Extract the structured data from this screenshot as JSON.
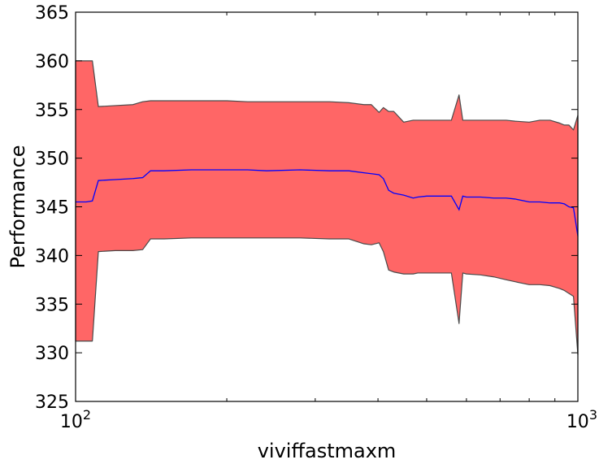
{
  "chart_data": {
    "type": "area",
    "title": "",
    "xlabel": "viviffastmaxm",
    "ylabel": "Performance",
    "x_scale": "log",
    "xlim": [
      100,
      1000
    ],
    "ylim": [
      325,
      365
    ],
    "grid": false,
    "legend": "none",
    "x_ticks": [
      {
        "value": 100,
        "base": "10",
        "exp": "2"
      },
      {
        "value": 1000,
        "base": "10",
        "exp": "3"
      }
    ],
    "y_ticks": [
      325,
      330,
      335,
      340,
      345,
      350,
      355,
      360,
      365
    ],
    "colors": {
      "band_fill": "#ff6666",
      "band_edge": "#4a4a4a",
      "mean_line": "#0000ff"
    },
    "x": [
      100,
      105,
      108,
      111,
      120,
      130,
      136,
      141,
      150,
      170,
      200,
      220,
      240,
      280,
      320,
      350,
      375,
      388,
      402,
      410,
      420,
      430,
      450,
      470,
      480,
      500,
      520,
      560,
      580,
      590,
      600,
      640,
      680,
      720,
      750,
      800,
      840,
      880,
      920,
      940,
      960,
      980,
      1000
    ],
    "upper": [
      360.0,
      360.0,
      360.0,
      355.3,
      355.4,
      355.5,
      355.8,
      355.9,
      355.9,
      355.9,
      355.9,
      355.8,
      355.8,
      355.8,
      355.8,
      355.7,
      355.5,
      355.5,
      354.7,
      355.2,
      354.8,
      354.8,
      353.7,
      353.9,
      353.9,
      353.9,
      353.9,
      353.9,
      356.5,
      353.9,
      353.9,
      353.9,
      353.9,
      353.9,
      353.8,
      353.7,
      353.9,
      353.9,
      353.6,
      353.4,
      353.4,
      352.9,
      354.4
    ],
    "mean": [
      345.5,
      345.5,
      345.6,
      347.7,
      347.8,
      347.9,
      348.0,
      348.7,
      348.7,
      348.8,
      348.8,
      348.8,
      348.7,
      348.8,
      348.7,
      348.7,
      348.5,
      348.4,
      348.3,
      347.9,
      346.7,
      346.4,
      346.2,
      345.9,
      346.0,
      346.1,
      346.1,
      346.1,
      344.7,
      346.1,
      346.0,
      346.0,
      345.9,
      345.9,
      345.8,
      345.5,
      345.5,
      345.4,
      345.4,
      345.3,
      345.0,
      344.9,
      342.0
    ],
    "lower": [
      331.2,
      331.2,
      331.2,
      340.4,
      340.5,
      340.5,
      340.6,
      341.7,
      341.7,
      341.8,
      341.8,
      341.8,
      341.8,
      341.8,
      341.7,
      341.7,
      341.2,
      341.1,
      341.3,
      340.4,
      338.5,
      338.3,
      338.1,
      338.1,
      338.2,
      338.2,
      338.2,
      338.2,
      333.0,
      338.2,
      338.1,
      338.0,
      337.8,
      337.5,
      337.3,
      337.0,
      337.0,
      336.9,
      336.6,
      336.4,
      336.1,
      335.8,
      329.8
    ]
  }
}
